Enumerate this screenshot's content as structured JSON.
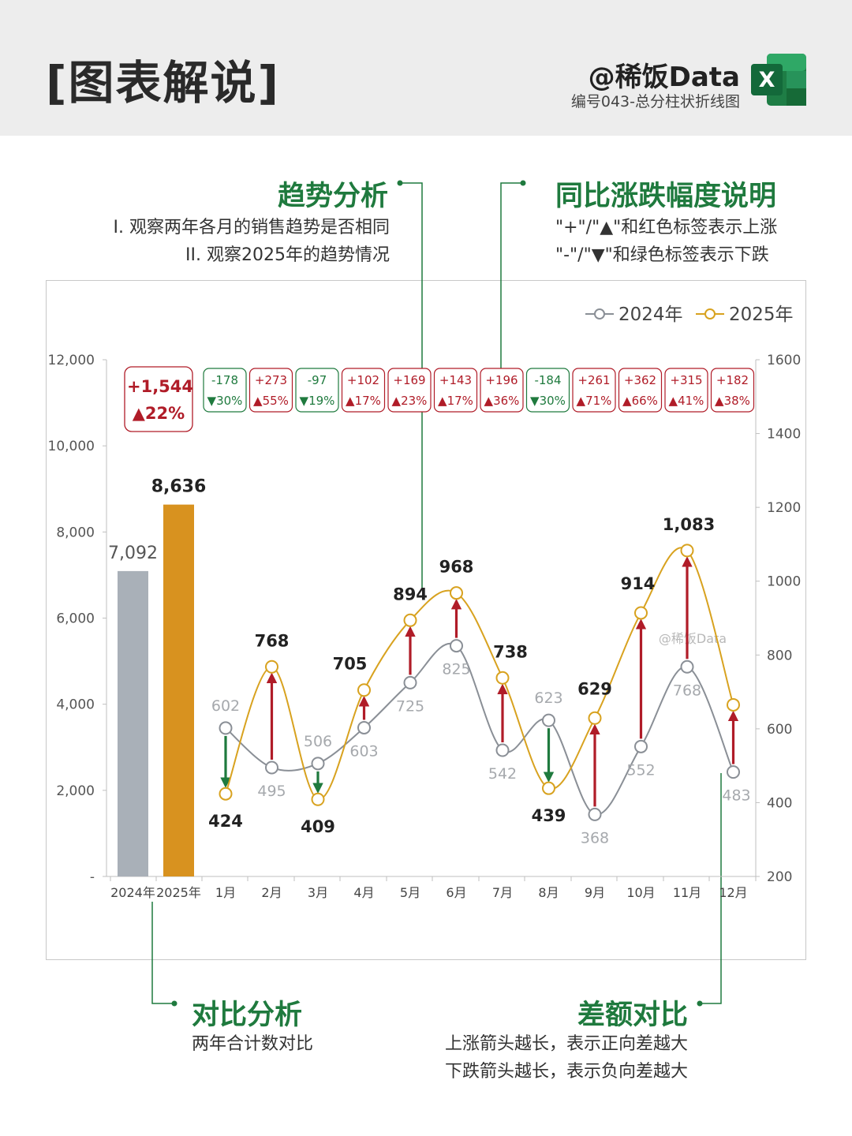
{
  "header": {
    "title": "[图表解说]",
    "brand": "@稀饭Data",
    "subtitle": "编号043-总分柱状折线图",
    "icon": "excel-icon",
    "icon_letter": "X"
  },
  "annotations": {
    "trend": {
      "title": "趋势分析",
      "lines": [
        "I.  观察两年各月的销售趋势是否相同",
        "II.  观察2025年的趋势情况"
      ]
    },
    "yoy": {
      "title": "同比涨跌幅度说明",
      "lines": [
        "\"+\"/\"▲\"和红色标签表示上涨",
        "\"-\"/\"▼\"和绿色标签表示下跌"
      ]
    },
    "compare": {
      "title": "对比分析",
      "lines": [
        "两年合计数对比"
      ]
    },
    "diff": {
      "title": "差额对比",
      "lines": [
        "上涨箭头越长，表示正向差越大",
        "下跌箭头越长，表示负向差越大"
      ]
    }
  },
  "chart_data": {
    "type": "bar+line",
    "legend": [
      "2024年",
      "2025年"
    ],
    "legend_position": "top-right",
    "watermark": "@稀饭Data",
    "colors": {
      "y2024": "#a9b0b8",
      "y2025": "#d8921f",
      "line2024": "#8a8f96",
      "line2025": "#d8a21f",
      "up": "#b01c28",
      "down": "#1f7a3e"
    },
    "left_axis": {
      "min": 0,
      "max": 12000,
      "ticks": [
        "-",
        "2,000",
        "4,000",
        "6,000",
        "8,000",
        "10,000",
        "12,000"
      ]
    },
    "right_axis": {
      "min": 200,
      "max": 1600,
      "ticks": [
        "200",
        "400",
        "600",
        "800",
        "1000",
        "1200",
        "1400",
        "1600"
      ]
    },
    "totals": {
      "categories": [
        "2024年",
        "2025年"
      ],
      "values": [
        7092,
        8636
      ],
      "labels": [
        "7,092",
        "8,636"
      ],
      "diff_label": "+1,544",
      "pct_label": "▲22%"
    },
    "months": [
      "1月",
      "2月",
      "3月",
      "4月",
      "5月",
      "6月",
      "7月",
      "8月",
      "9月",
      "10月",
      "11月",
      "12月"
    ],
    "series": [
      {
        "name": "2024年",
        "values": [
          602,
          495,
          506,
          603,
          725,
          825,
          542,
          623,
          368,
          552,
          768,
          483
        ]
      },
      {
        "name": "2025年",
        "values": [
          424,
          768,
          409,
          705,
          894,
          968,
          738,
          439,
          629,
          914,
          1083,
          665
        ]
      }
    ],
    "labels_2025": [
      "424",
      "768",
      "409",
      "705",
      "894",
      "968",
      "738",
      "439",
      "629",
      "914",
      "1,083",
      ""
    ],
    "labels_2024": [
      "602",
      "495",
      "506",
      "603",
      "725",
      "825",
      "542",
      "623",
      "368",
      "552",
      "768",
      "483"
    ],
    "diff_labels": [
      "-178",
      "+273",
      "-97",
      "+102",
      "+169",
      "+143",
      "+196",
      "-184",
      "+261",
      "+362",
      "+315",
      "+182"
    ],
    "pct_labels": [
      "▼30%",
      "▲55%",
      "▼19%",
      "▲17%",
      "▲23%",
      "▲17%",
      "▲36%",
      "▼30%",
      "▲71%",
      "▲66%",
      "▲41%",
      "▲38%"
    ]
  }
}
